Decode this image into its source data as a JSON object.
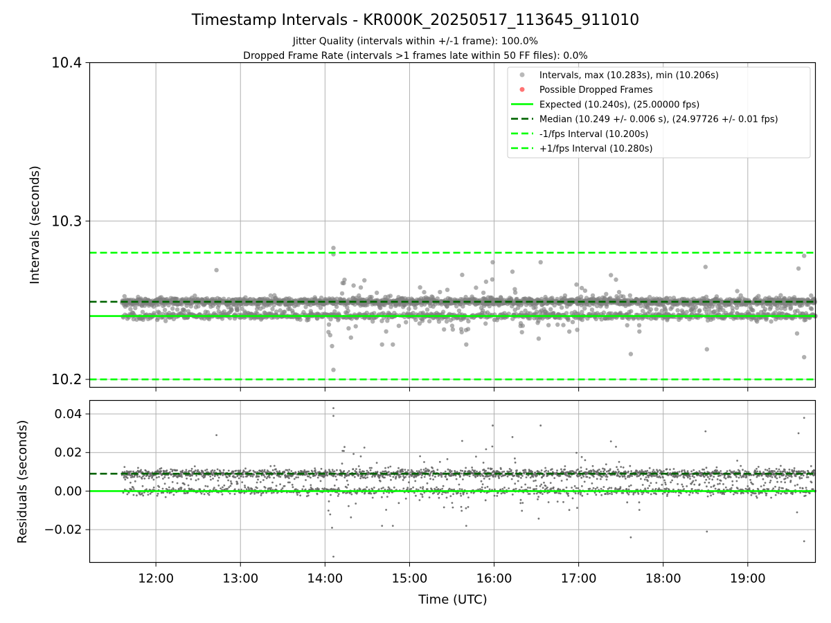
{
  "title": "Timestamp Intervals - KR000K_20250517_113645_911010",
  "subtitle_1": "Jitter Quality (intervals within +/-1 frame): 100.0%",
  "subtitle_2": "Dropped Frame Rate (intervals >1 frames late within 50 FF files): 0.0%",
  "colors": {
    "points": "#808080",
    "dropped": "#ff0000",
    "expected": "#00ff00",
    "median": "#006400",
    "interval_lines": "#00ff00",
    "grid": "#b0b0b0"
  },
  "chart_data": [
    {
      "id": "intervals",
      "type": "scatter",
      "ylabel": "Intervals (seconds)",
      "xlim": [
        "11:13",
        "19:48"
      ],
      "ylim": [
        10.195,
        10.4
      ],
      "yticks": [
        10.2,
        10.3,
        10.4
      ],
      "ytick_labels": [
        "10.2",
        "10.3",
        "10.4"
      ],
      "grid": true,
      "legend_position": "top-right",
      "legend": [
        {
          "label": "Intervals, max (10.283s), min (10.206s)",
          "kind": "dot",
          "color": "#808080"
        },
        {
          "label": "Possible Dropped Frames",
          "kind": "dot",
          "color": "#ff0000"
        },
        {
          "label": "Expected (10.240s), (25.00000 fps)",
          "kind": "solid",
          "color": "#00ff00"
        },
        {
          "label": "Median (10.249 +/- 0.006 s), (24.97726 +/- 0.01 fps)",
          "kind": "dashed",
          "color": "#006400"
        },
        {
          "label": "-1/fps Interval (10.200s)",
          "kind": "dashed",
          "color": "#00ff00"
        },
        {
          "label": "+1/fps Interval (10.280s)",
          "kind": "dashed",
          "color": "#00ff00"
        }
      ],
      "reference_lines": [
        {
          "name": "expected",
          "y": 10.24,
          "style": "solid",
          "color": "#00ff00"
        },
        {
          "name": "median",
          "y": 10.249,
          "style": "dashed",
          "color": "#006400"
        },
        {
          "name": "minus-one-fps",
          "y": 10.2,
          "style": "dashed",
          "color": "#00ff00"
        },
        {
          "name": "plus-one-fps",
          "y": 10.28,
          "style": "dashed",
          "color": "#00ff00"
        }
      ],
      "series": {
        "time_range": [
          "11:36",
          "19:48"
        ],
        "point_count": 2900,
        "median": 10.249,
        "expected": 10.24,
        "max": 10.283,
        "min": 10.206,
        "outliers": [
          {
            "x": "14:06",
            "y": 10.283
          },
          {
            "x": "14:06",
            "y": 10.279
          },
          {
            "x": "14:06",
            "y": 10.206
          },
          {
            "x": "14:05",
            "y": 10.221
          },
          {
            "x": "15:59",
            "y": 10.274
          },
          {
            "x": "16:33",
            "y": 10.274
          },
          {
            "x": "12:43",
            "y": 10.269
          },
          {
            "x": "16:13",
            "y": 10.268
          },
          {
            "x": "17:37",
            "y": 10.216
          },
          {
            "x": "18:30",
            "y": 10.271
          },
          {
            "x": "18:31",
            "y": 10.219
          },
          {
            "x": "19:36",
            "y": 10.27
          },
          {
            "x": "19:40",
            "y": 10.278
          },
          {
            "x": "19:40",
            "y": 10.214
          },
          {
            "x": "19:35",
            "y": 10.229
          }
        ]
      }
    },
    {
      "id": "residuals",
      "type": "scatter",
      "xlabel": "Time (UTC)",
      "ylabel": "Residuals (seconds)",
      "xlim": [
        "11:13",
        "19:48"
      ],
      "ylim": [
        -0.037,
        0.047
      ],
      "xticks": [
        "12:00",
        "13:00",
        "14:00",
        "15:00",
        "16:00",
        "17:00",
        "18:00",
        "19:00"
      ],
      "yticks": [
        -0.02,
        0.0,
        0.02,
        0.04
      ],
      "ytick_labels": [
        "−0.02",
        "0.00",
        "0.02",
        "0.04"
      ],
      "grid": true,
      "reference_lines": [
        {
          "name": "zero",
          "y": 0.0,
          "style": "solid",
          "color": "#00ff00"
        },
        {
          "name": "median-residual",
          "y": 0.009,
          "style": "dashed",
          "color": "#006400"
        }
      ],
      "series": {
        "time_range": [
          "11:36",
          "19:48"
        ],
        "point_count": 2900,
        "median": 0.009,
        "outliers": [
          {
            "x": "14:06",
            "y": 0.043
          },
          {
            "x": "14:06",
            "y": 0.039
          },
          {
            "x": "14:06",
            "y": -0.034
          },
          {
            "x": "14:05",
            "y": -0.02
          },
          {
            "x": "15:59",
            "y": 0.034
          },
          {
            "x": "16:33",
            "y": 0.034
          },
          {
            "x": "12:43",
            "y": 0.029
          },
          {
            "x": "17:37",
            "y": -0.024
          },
          {
            "x": "18:30",
            "y": 0.031
          },
          {
            "x": "18:31",
            "y": -0.021
          },
          {
            "x": "19:36",
            "y": 0.03
          },
          {
            "x": "19:40",
            "y": 0.038
          },
          {
            "x": "19:40",
            "y": -0.026
          }
        ]
      }
    }
  ]
}
